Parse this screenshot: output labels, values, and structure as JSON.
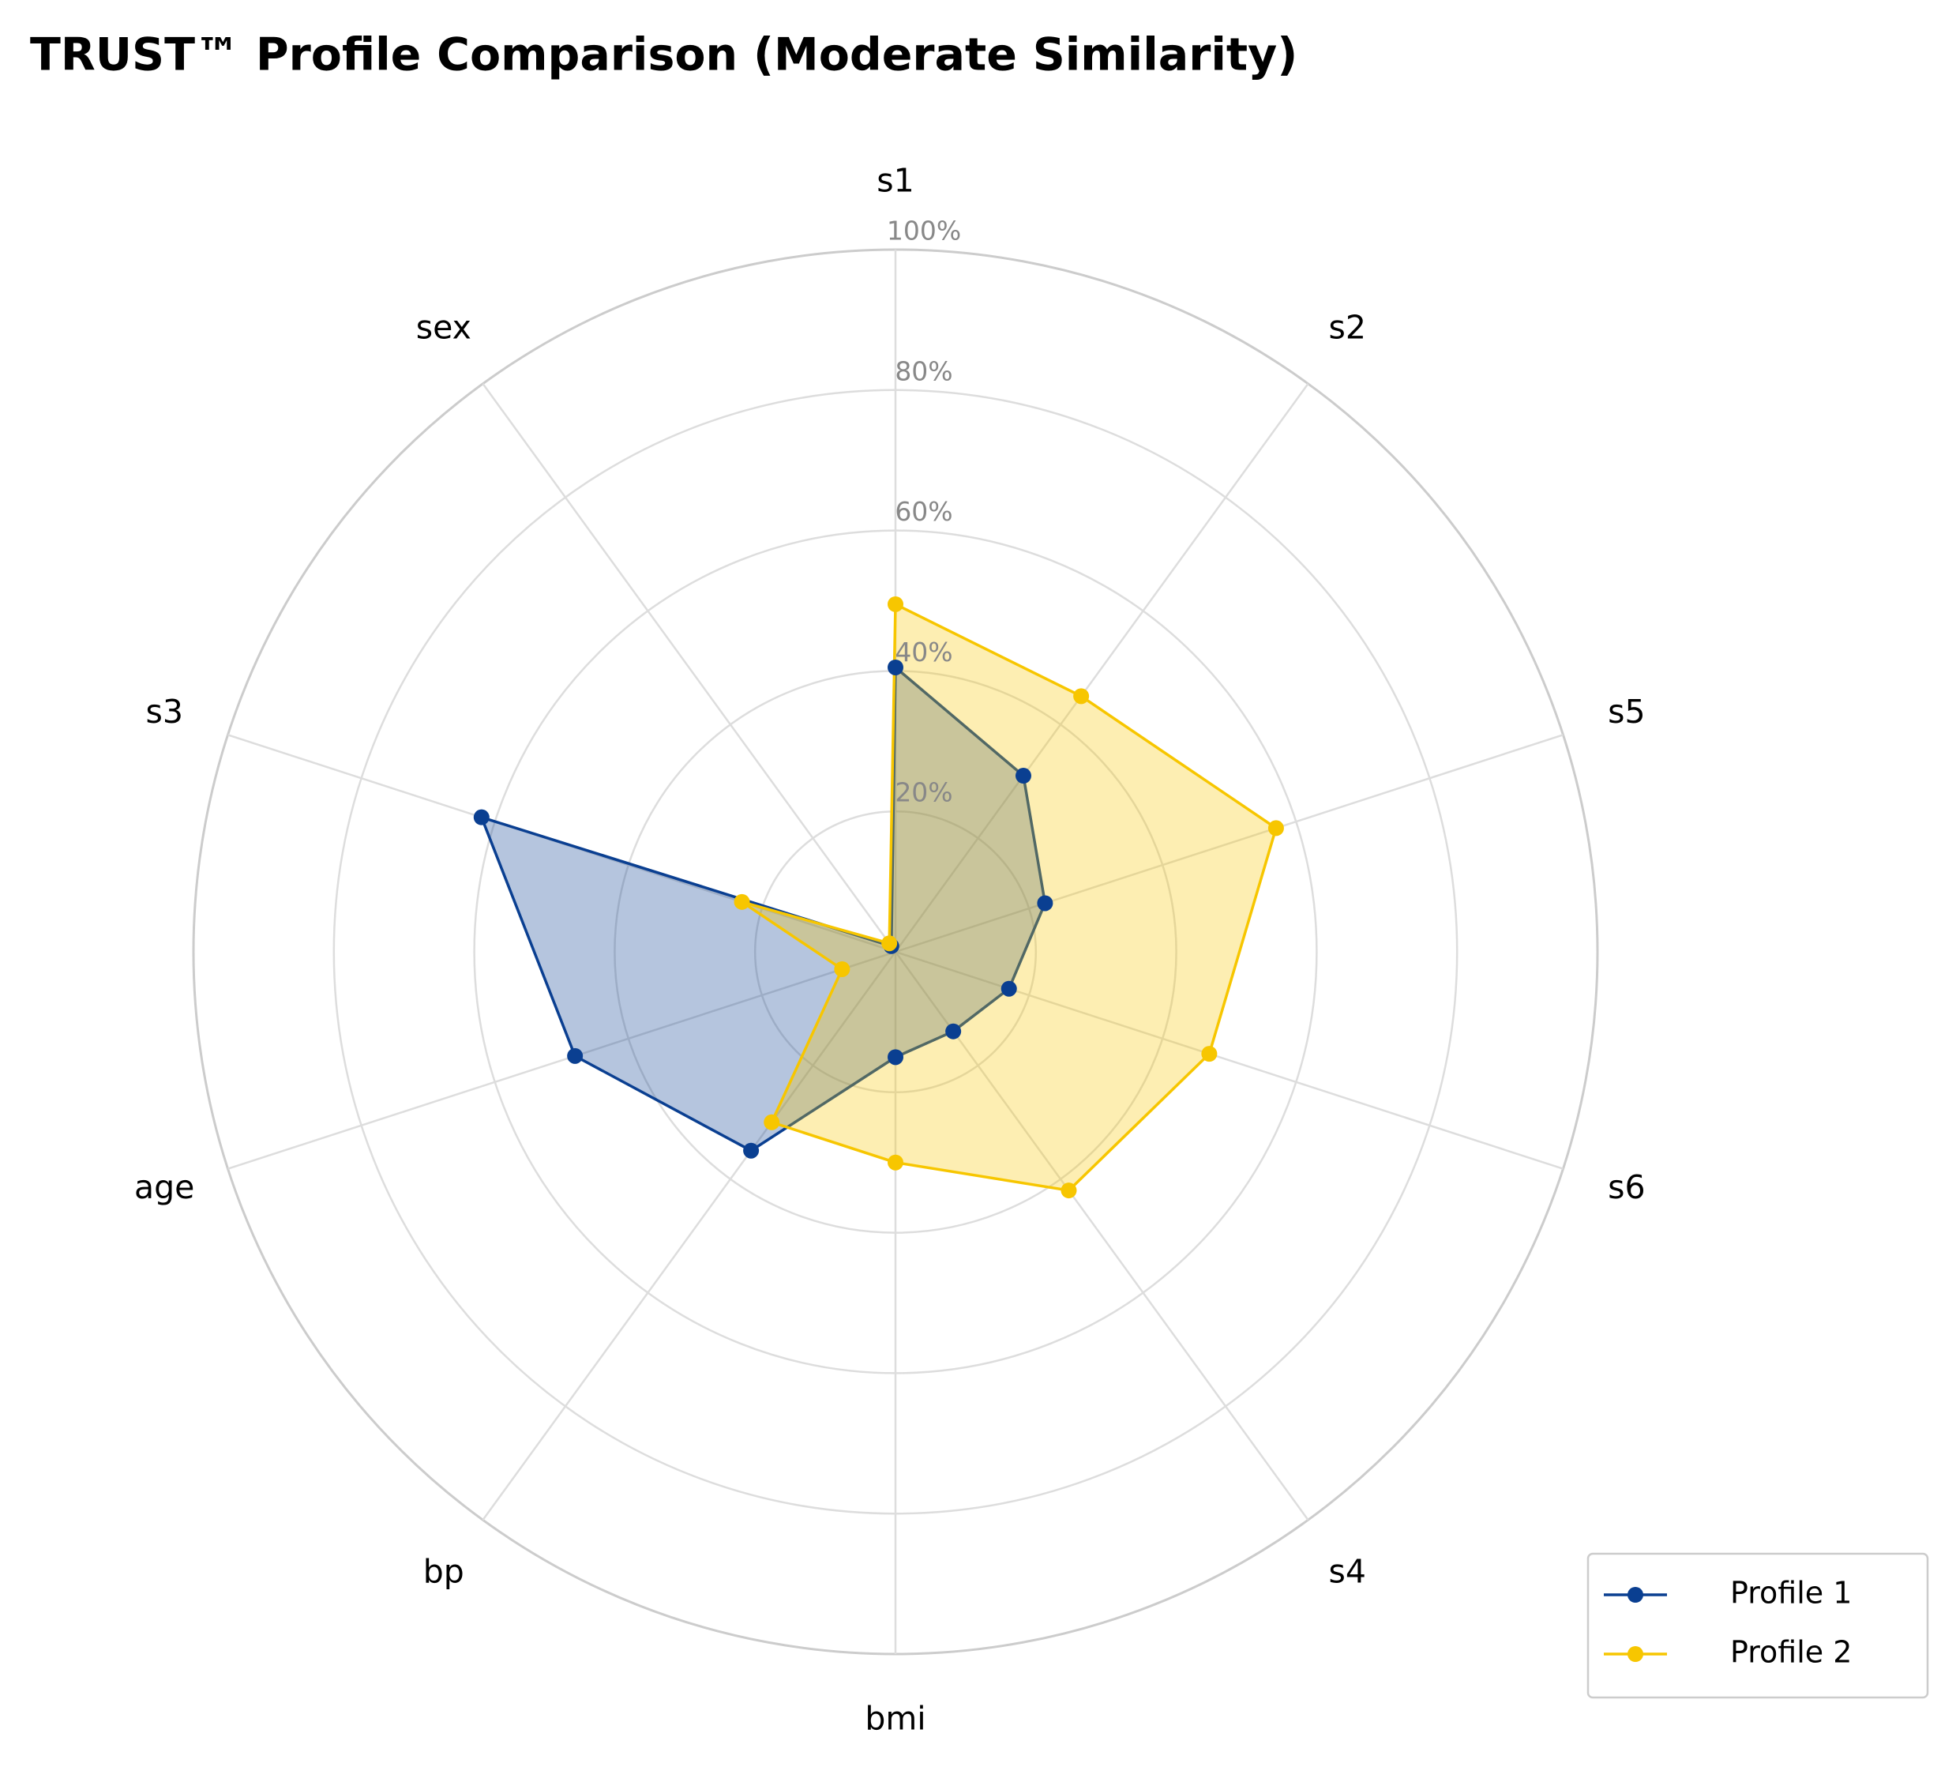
{
  "chart_data": {
    "type": "radar",
    "title": "TRUST™ Profile Comparison (Moderate Similarity)",
    "categories": [
      "s1",
      "s2",
      "s5",
      "s6",
      "s4",
      "bmi",
      "bp",
      "age",
      "s3",
      "sex"
    ],
    "series": [
      {
        "name": "Profile 1",
        "color": "#0a3f91",
        "values": [
          40.5,
          31,
          22.4,
          17,
          14,
          15,
          35,
          48,
          62,
          1
        ]
      },
      {
        "name": "Profile 2",
        "color": "#f7c600",
        "values": [
          49.5,
          45,
          57,
          47,
          42,
          30,
          30,
          8,
          23,
          1.5
        ]
      }
    ],
    "rlim": [
      0,
      100
    ],
    "rticks": [
      {
        "value": 20,
        "label": "20%"
      },
      {
        "value": 40,
        "label": "40%"
      },
      {
        "value": 60,
        "label": "60%"
      },
      {
        "value": 80,
        "label": "80%"
      },
      {
        "value": 100,
        "label": "100%"
      }
    ],
    "grid": true,
    "legend": "lower right"
  }
}
